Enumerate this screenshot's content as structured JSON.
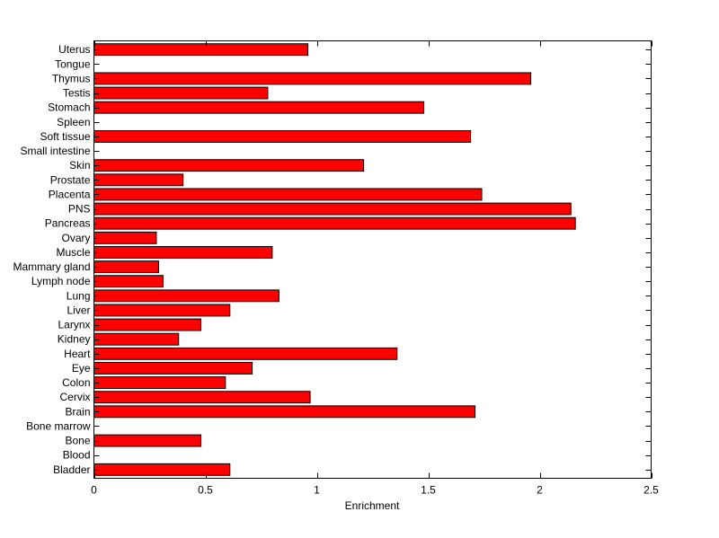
{
  "chart_data": {
    "type": "bar",
    "orientation": "horizontal",
    "title": "",
    "xlabel": "Enrichment",
    "ylabel": "",
    "xlim": [
      0,
      2.5
    ],
    "xticks": [
      0,
      0.5,
      1,
      1.5,
      2,
      2.5
    ],
    "xtick_labels": [
      "0",
      "0.5",
      "1",
      "1.5",
      "2",
      "2.5"
    ],
    "grid": false,
    "legend": "none",
    "bar_color": "#ff0000",
    "categories": [
      "Bladder",
      "Blood",
      "Bone",
      "Bone marrow",
      "Brain",
      "Cervix",
      "Colon",
      "Eye",
      "Heart",
      "Kidney",
      "Larynx",
      "Liver",
      "Lung",
      "Lymph node",
      "Mammary gland",
      "Muscle",
      "Ovary",
      "Pancreas",
      "PNS",
      "Placenta",
      "Prostate",
      "Skin",
      "Small intestine",
      "Soft tissue",
      "Spleen",
      "Stomach",
      "Testis",
      "Thymus",
      "Tongue",
      "Uterus"
    ],
    "values": [
      0.61,
      0,
      0.48,
      0,
      1.71,
      0.97,
      0.59,
      0.71,
      1.36,
      0.38,
      0.48,
      0.61,
      0.83,
      0.31,
      0.29,
      0.8,
      0.28,
      2.16,
      2.14,
      1.74,
      0.4,
      1.21,
      0,
      1.69,
      0,
      1.48,
      0.78,
      1.96,
      0,
      0.96
    ]
  }
}
